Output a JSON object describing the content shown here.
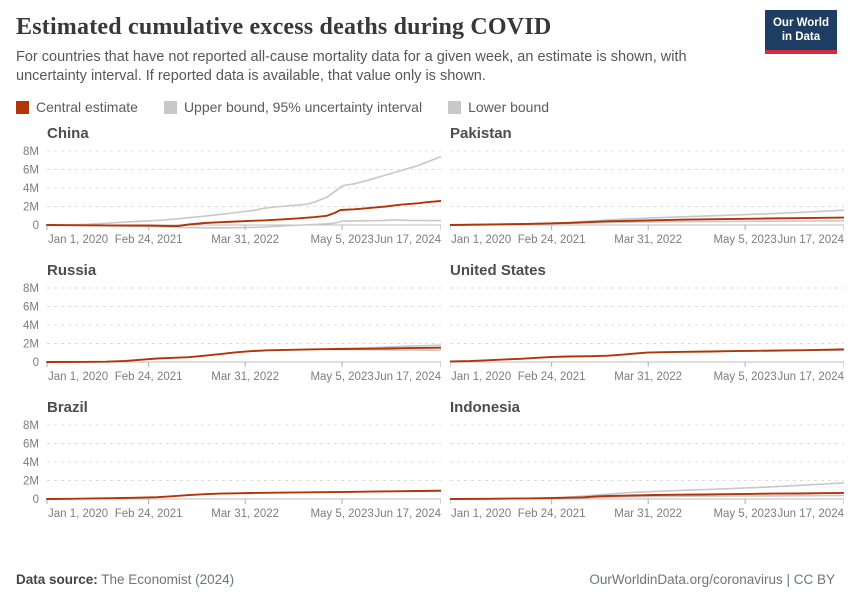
{
  "header": {
    "title": "Estimated cumulative excess deaths during COVID",
    "subtitle": "For countries that have not reported all-cause mortality data for a given week, an estimate is shown, with uncertainty interval. If reported data is available, that value only is shown.",
    "logo_line1": "Our World",
    "logo_line2": "in Data",
    "logo_bg": "#1d3d63",
    "logo_accent": "#cf2e41"
  },
  "legend": {
    "items": [
      {
        "label": "Central estimate",
        "color": "#b13507"
      },
      {
        "label": "Upper bound, 95% uncertainty interval",
        "color": "#c8c8c8"
      },
      {
        "label": "Lower bound",
        "color": "#c8c8c8"
      }
    ]
  },
  "footer": {
    "source_label": "Data source:",
    "source_value": " The Economist (2024)",
    "right_text": "OurWorldinData.org/coronavirus | CC BY"
  },
  "chart_data": {
    "type": "line",
    "unit": "millions of cumulative excess deaths",
    "ylim": [
      0,
      8
    ],
    "grid": "dashed-horizontal",
    "y_ticks": [
      {
        "label": "8M",
        "value": 8
      },
      {
        "label": "6M",
        "value": 6
      },
      {
        "label": "4M",
        "value": 4
      },
      {
        "label": "2M",
        "value": 2
      },
      {
        "label": "0",
        "value": 0
      }
    ],
    "x_ticks": [
      {
        "label": "Jan 1, 2020",
        "f": 0.0
      },
      {
        "label": "Feb 24, 2021",
        "f": 0.258
      },
      {
        "label": "Mar 31, 2022",
        "f": 0.503
      },
      {
        "label": "May 5, 2023",
        "f": 0.749
      },
      {
        "label": "Jun 17, 2024",
        "f": 1.0
      }
    ],
    "series_colors": {
      "central": "#b13507",
      "upper": "#c8c8c8",
      "lower": "#c8c8c8"
    },
    "panels": [
      {
        "title": "China",
        "y_labels": true,
        "series": {
          "upper": [
            [
              0,
              0
            ],
            [
              0.05,
              0.02
            ],
            [
              0.1,
              0.08
            ],
            [
              0.15,
              0.18
            ],
            [
              0.2,
              0.32
            ],
            [
              0.26,
              0.45
            ],
            [
              0.3,
              0.55
            ],
            [
              0.35,
              0.75
            ],
            [
              0.4,
              0.95
            ],
            [
              0.44,
              1.15
            ],
            [
              0.48,
              1.35
            ],
            [
              0.52,
              1.55
            ],
            [
              0.55,
              1.8
            ],
            [
              0.58,
              1.95
            ],
            [
              0.62,
              2.1
            ],
            [
              0.66,
              2.25
            ],
            [
              0.68,
              2.5
            ],
            [
              0.71,
              3.0
            ],
            [
              0.73,
              3.6
            ],
            [
              0.75,
              4.25
            ],
            [
              0.78,
              4.45
            ],
            [
              0.82,
              4.9
            ],
            [
              0.86,
              5.4
            ],
            [
              0.9,
              5.9
            ],
            [
              0.94,
              6.4
            ],
            [
              0.97,
              6.9
            ],
            [
              1,
              7.4
            ]
          ],
          "lower": [
            [
              0,
              0
            ],
            [
              0.1,
              -0.05
            ],
            [
              0.2,
              -0.1
            ],
            [
              0.26,
              -0.15
            ],
            [
              0.3,
              -0.2
            ],
            [
              0.35,
              -0.28
            ],
            [
              0.4,
              -0.3
            ],
            [
              0.45,
              -0.3
            ],
            [
              0.5,
              -0.28
            ],
            [
              0.55,
              -0.22
            ],
            [
              0.6,
              -0.1
            ],
            [
              0.65,
              0.0
            ],
            [
              0.7,
              0.1
            ],
            [
              0.73,
              0.2
            ],
            [
              0.75,
              0.42
            ],
            [
              0.8,
              0.45
            ],
            [
              0.85,
              0.48
            ],
            [
              0.88,
              0.55
            ],
            [
              0.92,
              0.5
            ],
            [
              1,
              0.48
            ]
          ],
          "central": [
            [
              0,
              0
            ],
            [
              0.05,
              -0.02
            ],
            [
              0.1,
              -0.03
            ],
            [
              0.15,
              -0.04
            ],
            [
              0.2,
              -0.05
            ],
            [
              0.26,
              -0.05
            ],
            [
              0.3,
              -0.1
            ],
            [
              0.33,
              -0.12
            ],
            [
              0.36,
              0.05
            ],
            [
              0.4,
              0.22
            ],
            [
              0.44,
              0.3
            ],
            [
              0.48,
              0.38
            ],
            [
              0.52,
              0.45
            ],
            [
              0.55,
              0.5
            ],
            [
              0.6,
              0.62
            ],
            [
              0.64,
              0.72
            ],
            [
              0.68,
              0.85
            ],
            [
              0.71,
              1.0
            ],
            [
              0.73,
              1.3
            ],
            [
              0.745,
              1.62
            ],
            [
              0.78,
              1.7
            ],
            [
              0.82,
              1.85
            ],
            [
              0.86,
              2.0
            ],
            [
              0.9,
              2.2
            ],
            [
              0.94,
              2.35
            ],
            [
              0.97,
              2.5
            ],
            [
              1,
              2.6
            ]
          ]
        }
      },
      {
        "title": "Pakistan",
        "y_labels": false,
        "series": {
          "upper": [
            [
              0,
              0
            ],
            [
              0.1,
              0.06
            ],
            [
              0.2,
              0.14
            ],
            [
              0.26,
              0.2
            ],
            [
              0.3,
              0.28
            ],
            [
              0.4,
              0.55
            ],
            [
              0.5,
              0.75
            ],
            [
              0.6,
              0.9
            ],
            [
              0.7,
              1.05
            ],
            [
              0.8,
              1.2
            ],
            [
              0.9,
              1.38
            ],
            [
              1,
              1.6
            ]
          ],
          "lower": [
            [
              0,
              0
            ],
            [
              0.1,
              0.04
            ],
            [
              0.2,
              0.1
            ],
            [
              0.26,
              0.16
            ],
            [
              0.3,
              0.18
            ],
            [
              0.4,
              0.28
            ],
            [
              0.5,
              0.33
            ],
            [
              0.6,
              0.37
            ],
            [
              0.7,
              0.39
            ],
            [
              0.8,
              0.41
            ],
            [
              0.9,
              0.43
            ],
            [
              1,
              0.45
            ]
          ],
          "central": [
            [
              0,
              0
            ],
            [
              0.1,
              0.05
            ],
            [
              0.2,
              0.12
            ],
            [
              0.26,
              0.18
            ],
            [
              0.3,
              0.23
            ],
            [
              0.4,
              0.4
            ],
            [
              0.5,
              0.5
            ],
            [
              0.6,
              0.58
            ],
            [
              0.7,
              0.64
            ],
            [
              0.8,
              0.7
            ],
            [
              0.9,
              0.75
            ],
            [
              1,
              0.8
            ]
          ]
        }
      },
      {
        "title": "Russia",
        "y_labels": true,
        "series": {
          "upper": [
            [
              0.72,
              1.42
            ],
            [
              0.8,
              1.52
            ],
            [
              0.86,
              1.62
            ],
            [
              0.92,
              1.72
            ],
            [
              1,
              1.82
            ]
          ],
          "lower": [
            [
              0.72,
              1.36
            ],
            [
              0.8,
              1.33
            ],
            [
              0.86,
              1.31
            ],
            [
              0.92,
              1.29
            ],
            [
              1,
              1.27
            ]
          ],
          "central": [
            [
              0,
              0
            ],
            [
              0.08,
              0.01
            ],
            [
              0.15,
              0.03
            ],
            [
              0.2,
              0.12
            ],
            [
              0.24,
              0.25
            ],
            [
              0.28,
              0.38
            ],
            [
              0.32,
              0.45
            ],
            [
              0.36,
              0.52
            ],
            [
              0.4,
              0.68
            ],
            [
              0.44,
              0.85
            ],
            [
              0.48,
              1.05
            ],
            [
              0.52,
              1.18
            ],
            [
              0.56,
              1.27
            ],
            [
              0.62,
              1.32
            ],
            [
              0.68,
              1.37
            ],
            [
              0.74,
              1.4
            ],
            [
              0.8,
              1.43
            ],
            [
              0.86,
              1.46
            ],
            [
              0.92,
              1.5
            ],
            [
              1,
              1.55
            ]
          ]
        }
      },
      {
        "title": "United States",
        "y_labels": false,
        "series": {
          "upper": [
            [
              0.93,
              1.32
            ],
            [
              1,
              1.42
            ]
          ],
          "lower": [
            [
              0.93,
              1.28
            ],
            [
              1,
              1.3
            ]
          ],
          "central": [
            [
              0,
              0.05
            ],
            [
              0.05,
              0.1
            ],
            [
              0.1,
              0.2
            ],
            [
              0.14,
              0.28
            ],
            [
              0.18,
              0.35
            ],
            [
              0.22,
              0.45
            ],
            [
              0.26,
              0.55
            ],
            [
              0.3,
              0.6
            ],
            [
              0.36,
              0.63
            ],
            [
              0.4,
              0.68
            ],
            [
              0.44,
              0.8
            ],
            [
              0.48,
              0.95
            ],
            [
              0.5,
              1.02
            ],
            [
              0.54,
              1.06
            ],
            [
              0.6,
              1.1
            ],
            [
              0.66,
              1.14
            ],
            [
              0.72,
              1.18
            ],
            [
              0.78,
              1.21
            ],
            [
              0.84,
              1.24
            ],
            [
              0.9,
              1.28
            ],
            [
              0.95,
              1.32
            ],
            [
              1,
              1.36
            ]
          ]
        }
      },
      {
        "title": "Brazil",
        "y_labels": true,
        "series": {
          "upper": [
            [
              0.94,
              0.88
            ],
            [
              1,
              0.93
            ]
          ],
          "lower": [
            [
              0.94,
              0.84
            ],
            [
              1,
              0.87
            ]
          ],
          "central": [
            [
              0,
              0
            ],
            [
              0.06,
              0.02
            ],
            [
              0.12,
              0.06
            ],
            [
              0.18,
              0.1
            ],
            [
              0.24,
              0.15
            ],
            [
              0.28,
              0.2
            ],
            [
              0.32,
              0.3
            ],
            [
              0.36,
              0.42
            ],
            [
              0.4,
              0.52
            ],
            [
              0.44,
              0.58
            ],
            [
              0.48,
              0.62
            ],
            [
              0.52,
              0.65
            ],
            [
              0.58,
              0.68
            ],
            [
              0.64,
              0.71
            ],
            [
              0.7,
              0.74
            ],
            [
              0.76,
              0.77
            ],
            [
              0.82,
              0.8
            ],
            [
              0.88,
              0.83
            ],
            [
              0.94,
              0.86
            ],
            [
              1,
              0.9
            ]
          ]
        }
      },
      {
        "title": "Indonesia",
        "y_labels": false,
        "series": {
          "upper": [
            [
              0,
              0
            ],
            [
              0.1,
              0.03
            ],
            [
              0.2,
              0.08
            ],
            [
              0.26,
              0.14
            ],
            [
              0.3,
              0.22
            ],
            [
              0.34,
              0.32
            ],
            [
              0.38,
              0.45
            ],
            [
              0.42,
              0.58
            ],
            [
              0.46,
              0.7
            ],
            [
              0.5,
              0.78
            ],
            [
              0.55,
              0.88
            ],
            [
              0.6,
              0.95
            ],
            [
              0.65,
              1.02
            ],
            [
              0.7,
              1.1
            ],
            [
              0.75,
              1.2
            ],
            [
              0.8,
              1.28
            ],
            [
              0.85,
              1.38
            ],
            [
              0.9,
              1.5
            ],
            [
              0.95,
              1.62
            ],
            [
              1,
              1.75
            ]
          ],
          "lower": [
            [
              0,
              0
            ],
            [
              0.1,
              0.01
            ],
            [
              0.2,
              0.04
            ],
            [
              0.3,
              0.08
            ],
            [
              0.37,
              0.18
            ],
            [
              0.44,
              0.24
            ],
            [
              0.52,
              0.28
            ],
            [
              0.6,
              0.3
            ],
            [
              0.7,
              0.32
            ],
            [
              0.8,
              0.34
            ],
            [
              0.9,
              0.36
            ],
            [
              1,
              0.38
            ]
          ],
          "central": [
            [
              0,
              0
            ],
            [
              0.1,
              0.02
            ],
            [
              0.2,
              0.06
            ],
            [
              0.26,
              0.1
            ],
            [
              0.3,
              0.14
            ],
            [
              0.34,
              0.18
            ],
            [
              0.37,
              0.28
            ],
            [
              0.4,
              0.32
            ],
            [
              0.44,
              0.36
            ],
            [
              0.48,
              0.4
            ],
            [
              0.52,
              0.43
            ],
            [
              0.58,
              0.46
            ],
            [
              0.64,
              0.49
            ],
            [
              0.7,
              0.52
            ],
            [
              0.76,
              0.55
            ],
            [
              0.82,
              0.58
            ],
            [
              0.88,
              0.6
            ],
            [
              0.94,
              0.63
            ],
            [
              1,
              0.66
            ]
          ]
        }
      }
    ]
  }
}
